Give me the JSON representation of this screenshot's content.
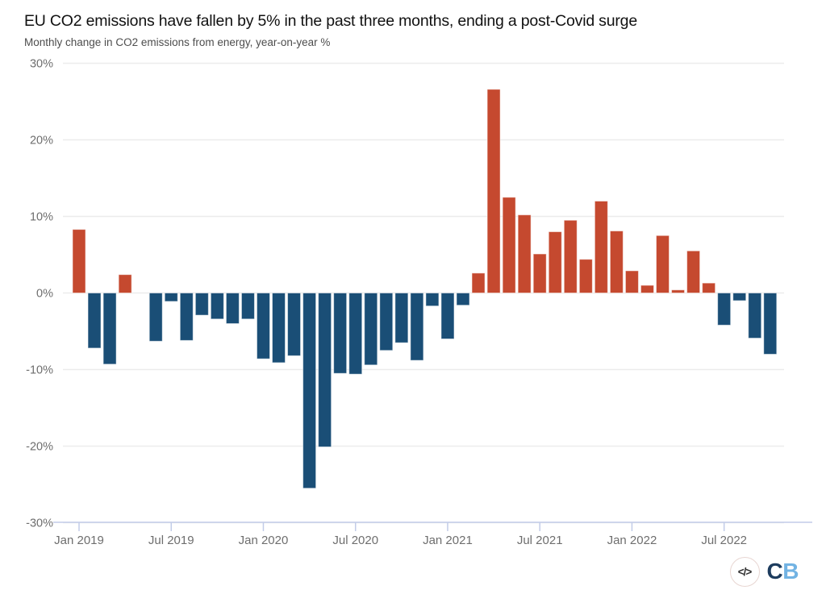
{
  "chart_data": {
    "type": "bar",
    "title": "EU CO2 emissions have fallen by 5% in the past three months, ending a post-Covid surge",
    "subtitle": "Monthly change in CO2 emissions from energy, year-on-year %",
    "xlabel": "",
    "ylabel": "",
    "unit": "%",
    "ylim": [
      -30,
      30
    ],
    "grid": true,
    "legend": "none",
    "y_ticks": [
      30,
      20,
      10,
      0,
      -10,
      -20,
      -30
    ],
    "y_tick_labels": [
      "30%",
      "20%",
      "10%",
      "0%",
      "-10%",
      "-20%",
      "-30%"
    ],
    "x_tick_indices": [
      0,
      6,
      12,
      18,
      24,
      30,
      36,
      42
    ],
    "x": [
      "Jan 2019",
      "Feb 2019",
      "Mar 2019",
      "Apr 2019",
      "May 2019",
      "Jun 2019",
      "Jul 2019",
      "Aug 2019",
      "Sep 2019",
      "Oct 2019",
      "Nov 2019",
      "Dec 2019",
      "Jan 2020",
      "Feb 2020",
      "Mar 2020",
      "Apr 2020",
      "May 2020",
      "Jun 2020",
      "Jul 2020",
      "Aug 2020",
      "Sep 2020",
      "Oct 2020",
      "Nov 2020",
      "Dec 2020",
      "Jan 2021",
      "Feb 2021",
      "Mar 2021",
      "Apr 2021",
      "May 2021",
      "Jun 2021",
      "Jul 2021",
      "Aug 2021",
      "Sep 2021",
      "Oct 2021",
      "Nov 2021",
      "Dec 2021",
      "Jan 2022",
      "Feb 2022",
      "Mar 2022",
      "Apr 2022",
      "May 2022",
      "Jun 2022",
      "Jul 2022",
      "Aug 2022",
      "Sep 2022",
      "Oct 2022"
    ],
    "values": [
      8.3,
      -7.2,
      -9.3,
      2.4,
      0,
      -6.3,
      -1.1,
      -6.2,
      -2.9,
      -3.4,
      -4.0,
      -3.4,
      -8.6,
      -9.1,
      -8.2,
      -25.5,
      -20.1,
      -10.5,
      -10.6,
      -9.4,
      -7.5,
      -6.5,
      -8.8,
      -1.7,
      -6.0,
      -1.6,
      2.6,
      26.6,
      12.5,
      10.2,
      5.1,
      8.0,
      9.5,
      4.4,
      12.0,
      8.1,
      2.9,
      1.0,
      7.5,
      0.4,
      5.5,
      1.3,
      -4.2,
      -1.0,
      -5.9,
      -8.0
    ],
    "colors": {
      "positive_bar": "#c5492f",
      "negative_bar": "#1a4e76",
      "gridline": "#ececec",
      "axis_line": "#c2cce8",
      "tick_label": "#6e6e6e"
    }
  },
  "logo": {
    "code_glyph": "</>",
    "letter_c": "C",
    "letter_b": "B"
  }
}
